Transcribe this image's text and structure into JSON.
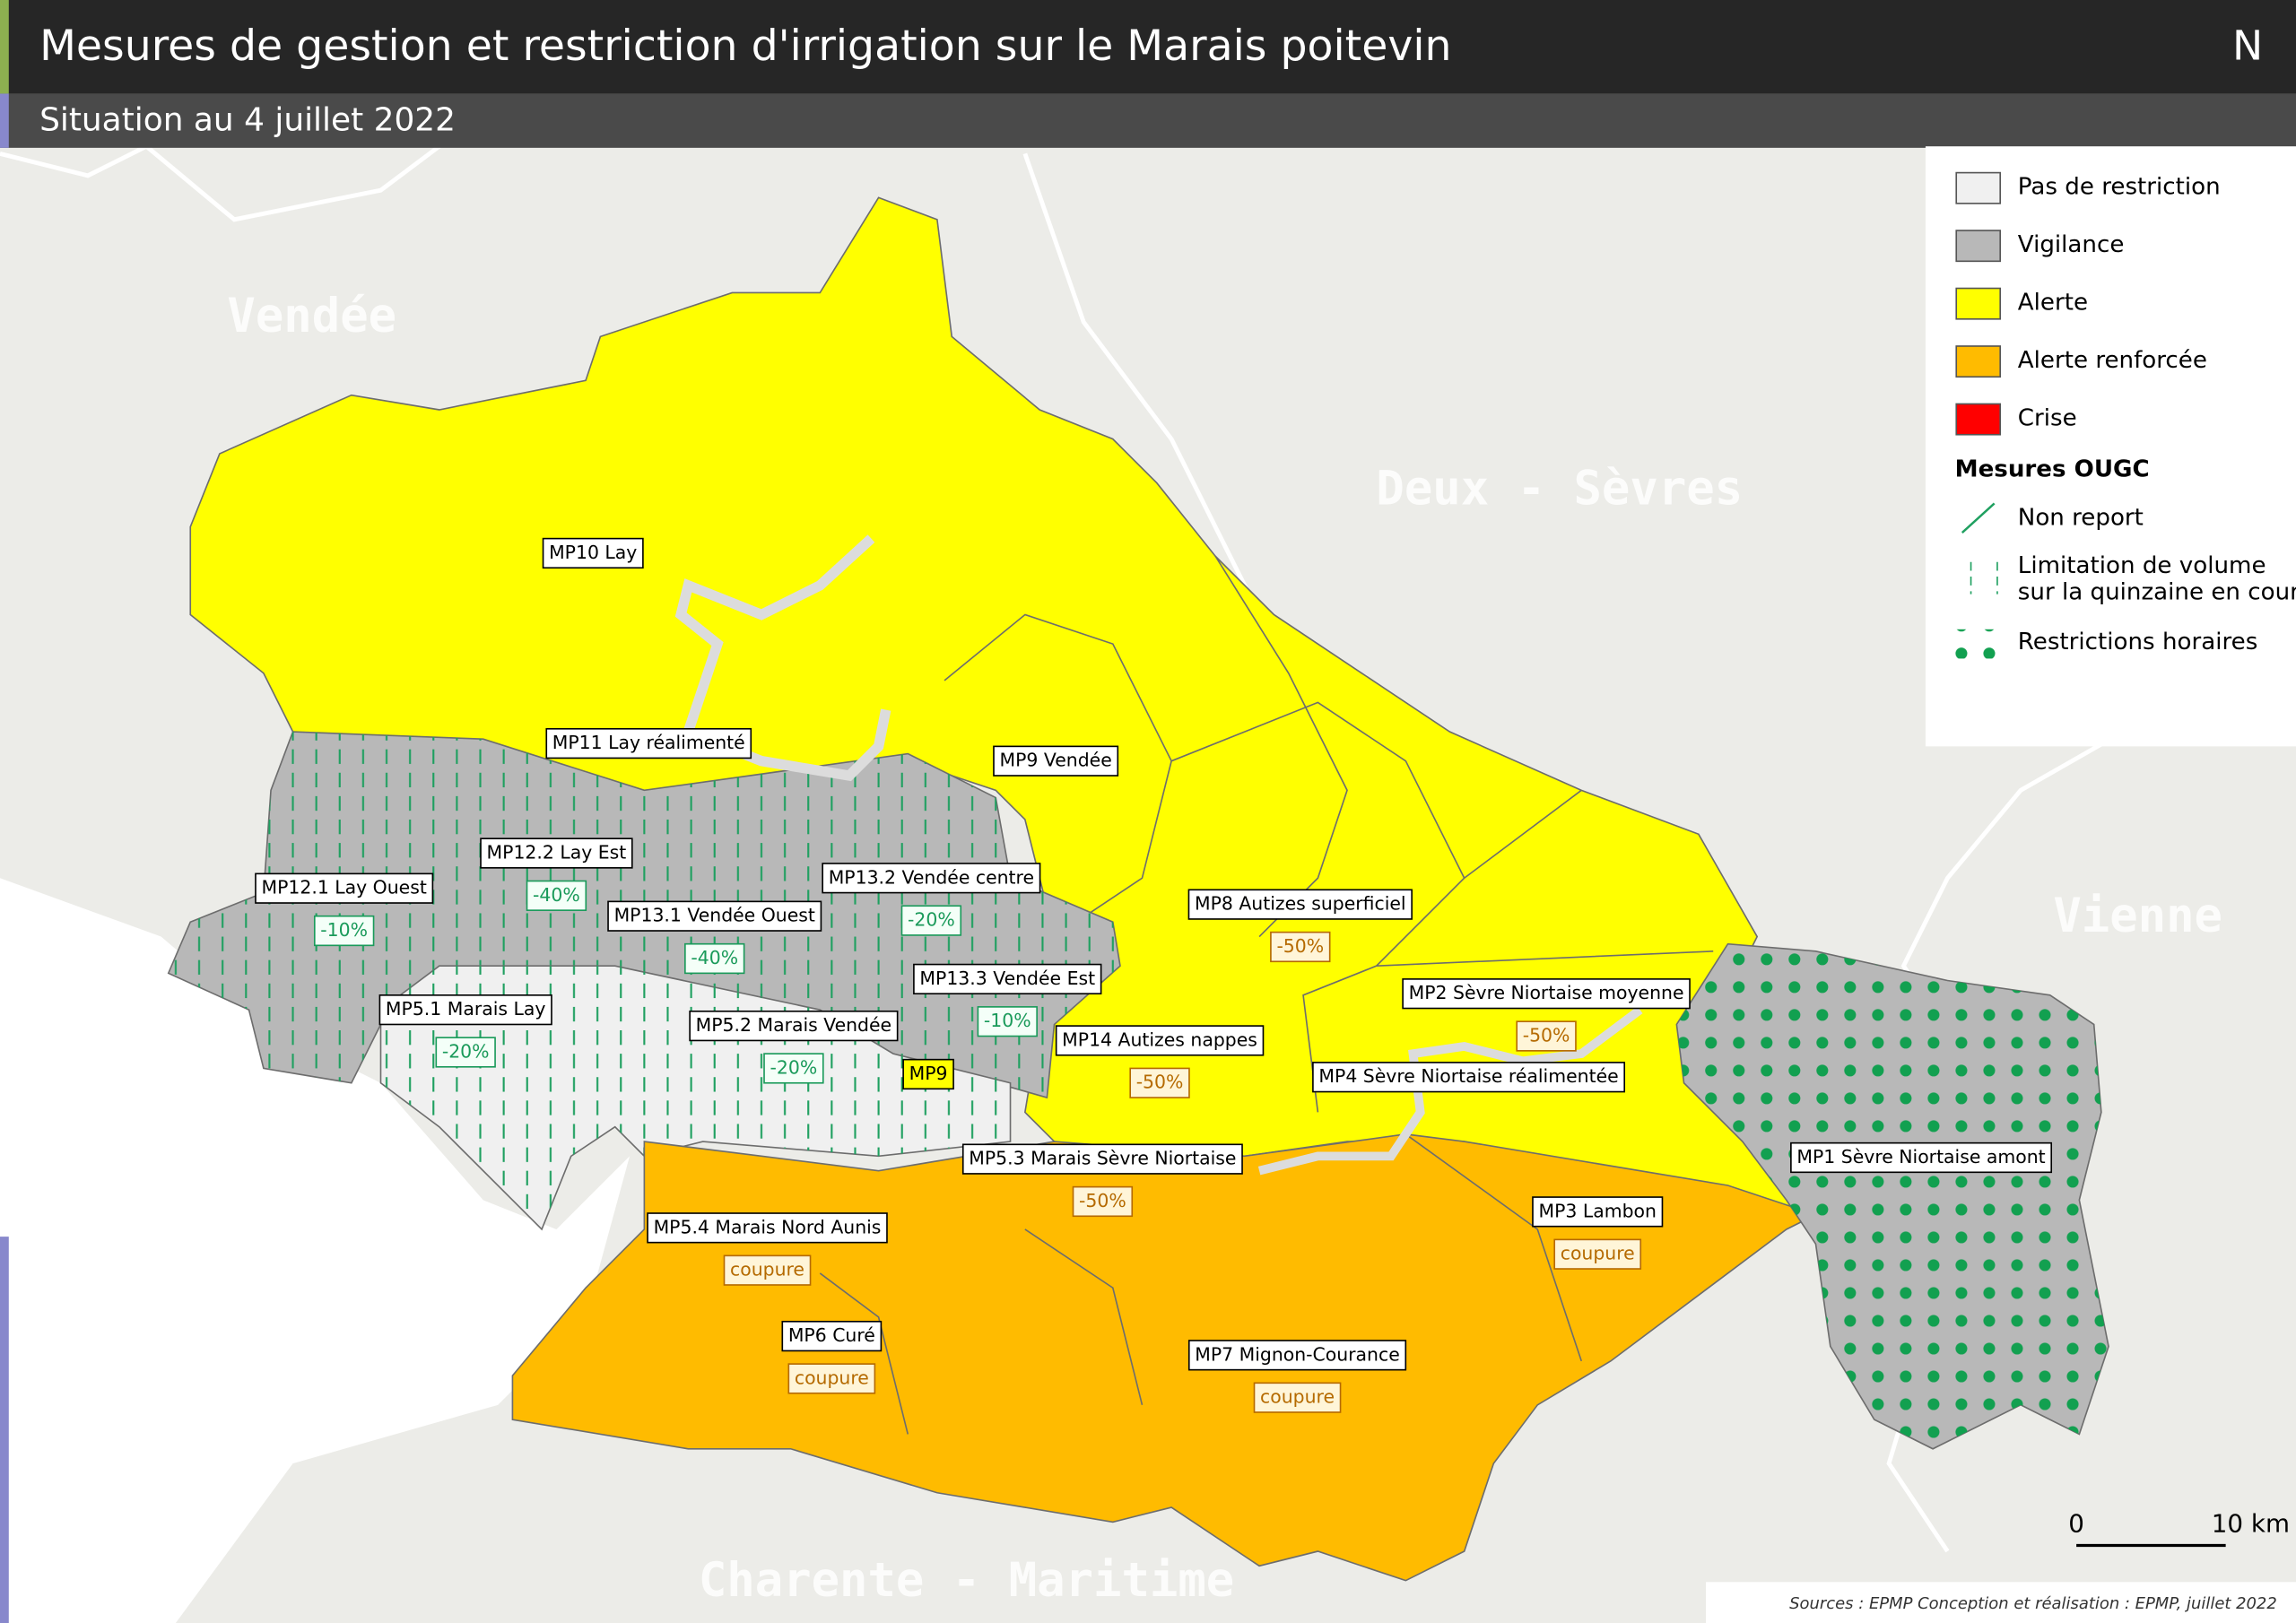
{
  "header": {
    "title": "Mesures de gestion et restriction d'irrigation sur le Marais poitevin",
    "subtitle": "Situation au 4 juillet 2022",
    "north": "N"
  },
  "regions": [
    "Vendée",
    "Deux - Sèvres",
    "Vienne",
    "Charente - Maritime"
  ],
  "legend": {
    "items": [
      "Pas de restriction",
      "Vigilance",
      "Alerte",
      "Alerte renforcée",
      "Crise"
    ],
    "ougc_title": "Mesures OUGC",
    "ougc_items": [
      [
        "Non report"
      ],
      [
        "Limitation de volume",
        "sur la quinzaine en cours"
      ],
      [
        "Restrictions horaires"
      ]
    ]
  },
  "zones": [
    {
      "label": "MP10 Lay"
    },
    {
      "label": "MP11 Lay réalimenté"
    },
    {
      "label": "MP9 Vendée"
    },
    {
      "label": "MP12.2 Lay Est",
      "measure": "-40%"
    },
    {
      "label": "MP12.1 Lay Ouest",
      "measure": "-10%"
    },
    {
      "label": "MP13.2 Vendée centre",
      "measure": "-20%"
    },
    {
      "label": "MP13.1 Vendée Ouest",
      "measure": "-40%"
    },
    {
      "label": "MP8 Autizes superficiel",
      "measure": "-50%"
    },
    {
      "label": "MP13.3 Vendée Est",
      "measure": "-10%"
    },
    {
      "label": "MP5.1 Marais Lay",
      "measure": "-20%"
    },
    {
      "label": "MP2 Sèvre Niortaise moyenne",
      "measure": "-50%"
    },
    {
      "label": "MP5.2 Marais Vendée",
      "measure": "-20%"
    },
    {
      "label": "MP14 Autizes nappes",
      "measure": "-50%"
    },
    {
      "label": "MP4 Sèvre Niortaise réalimentée"
    },
    {
      "label": "MP9"
    },
    {
      "label": "MP5.3 Marais Sèvre Niortaise",
      "measure": "-50%"
    },
    {
      "label": "MP1 Sèvre Niortaise amont"
    },
    {
      "label": "MP5.4 Marais Nord Aunis",
      "measure": "coupure"
    },
    {
      "label": "MP3 Lambon",
      "measure": "coupure"
    },
    {
      "label": "MP6 Curé",
      "measure": "coupure"
    },
    {
      "label": "MP7 Mignon-Courance",
      "measure": "coupure"
    }
  ],
  "scale": {
    "start": "0",
    "end": "10 km"
  },
  "sources": "Sources : EPMP Conception et réalisation : EPMP, juillet 2022"
}
